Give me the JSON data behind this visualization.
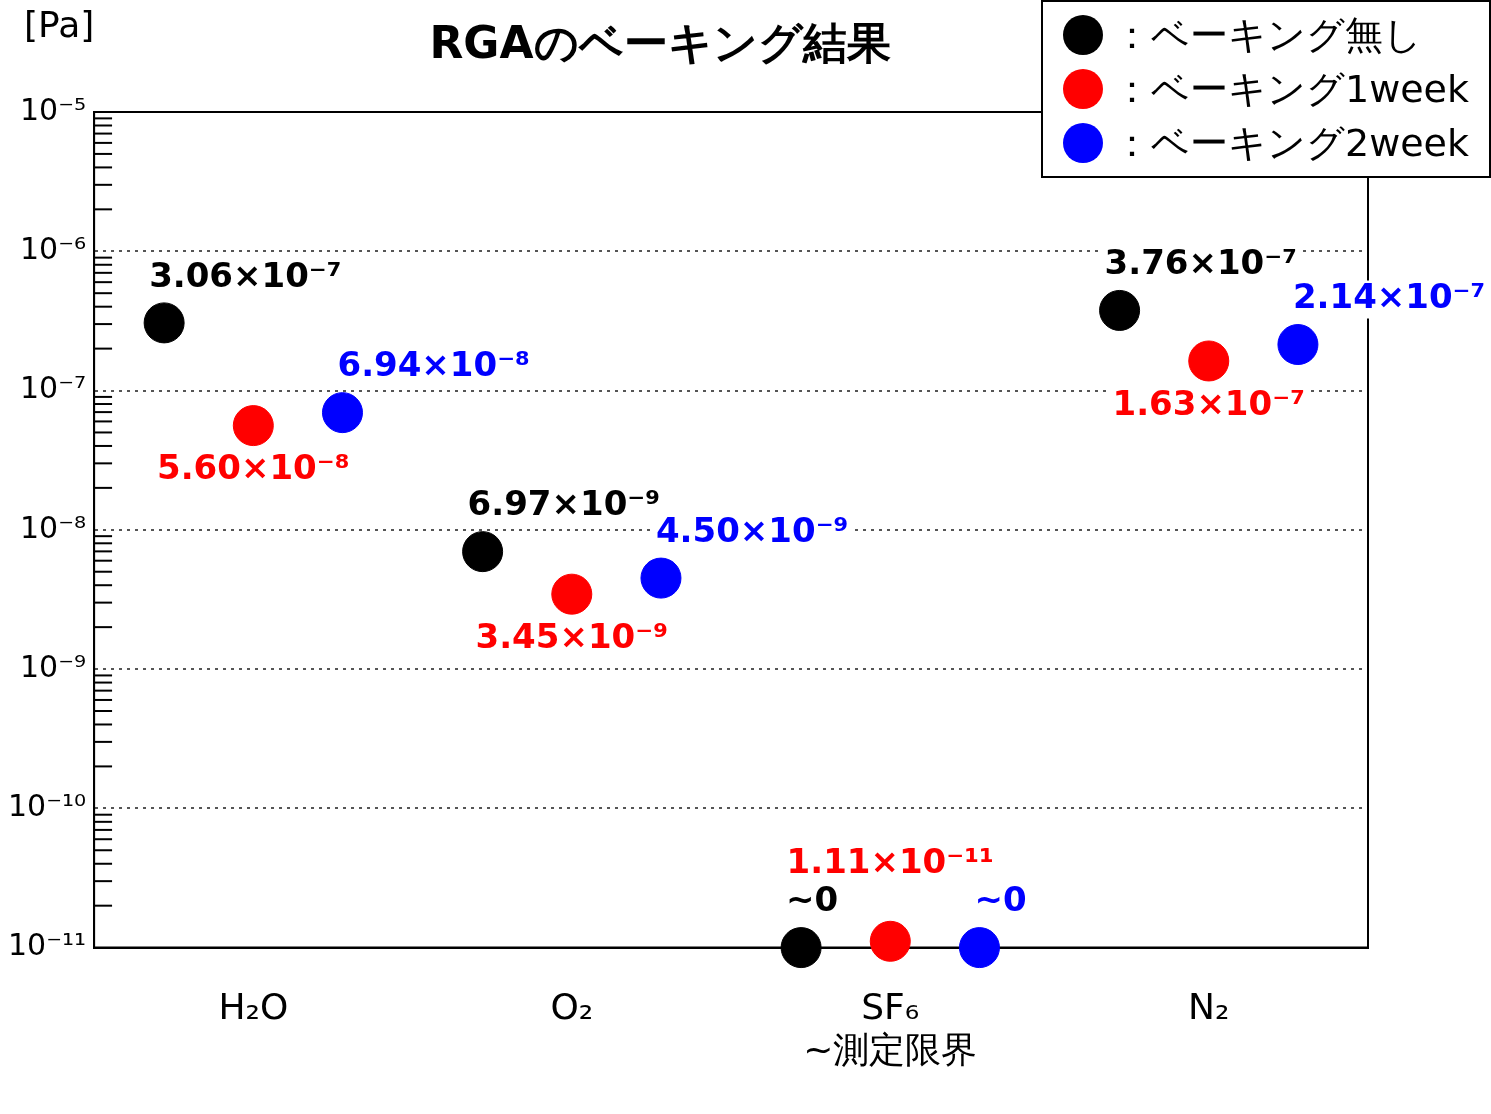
{
  "chart_data": {
    "type": "scatter",
    "title": "RGAのベーキング結果",
    "ylabel": "[Pa]",
    "categories": [
      "H₂O",
      "O₂",
      "SF₆\n~測定限界",
      "N₂"
    ],
    "series": [
      {
        "name": "：ベーキング無し",
        "color": "#000000",
        "values": [
          3.06e-07,
          6.97e-09,
          1e-11,
          3.76e-07
        ],
        "value_labels": [
          "3.06×10⁻⁷",
          "6.97×10⁻⁹",
          "~0",
          "3.76×10⁻⁷"
        ]
      },
      {
        "name": "：ベーキング1week",
        "color": "#ff0000",
        "values": [
          5.6e-08,
          3.45e-09,
          1.11e-11,
          1.63e-07
        ],
        "value_labels": [
          "5.60×10⁻⁸",
          "3.45×10⁻⁹",
          "1.11×10⁻¹¹",
          "1.63×10⁻⁷"
        ]
      },
      {
        "name": "：ベーキング2week",
        "color": "#0000ff",
        "values": [
          6.94e-08,
          4.5e-09,
          1e-11,
          2.14e-07
        ],
        "value_labels": [
          "6.94×10⁻⁸",
          "4.50×10⁻⁹",
          "~0",
          "2.14×10⁻⁷"
        ]
      }
    ],
    "log": "y",
    "ylim": [
      1e-11,
      1e-05
    ],
    "yticks": [
      {
        "value": 1e-11,
        "label": "10⁻¹¹"
      },
      {
        "value": 1e-10,
        "label": "10⁻¹⁰"
      },
      {
        "value": 1e-09,
        "label": "10⁻⁹"
      },
      {
        "value": 1e-08,
        "label": "10⁻⁸"
      },
      {
        "value": 1e-07,
        "label": "10⁻⁷"
      },
      {
        "value": 1e-06,
        "label": "10⁻⁶"
      },
      {
        "value": 1e-05,
        "label": "10⁻⁵"
      }
    ],
    "grid": "y",
    "legend": "top right",
    "marker": "circle"
  }
}
